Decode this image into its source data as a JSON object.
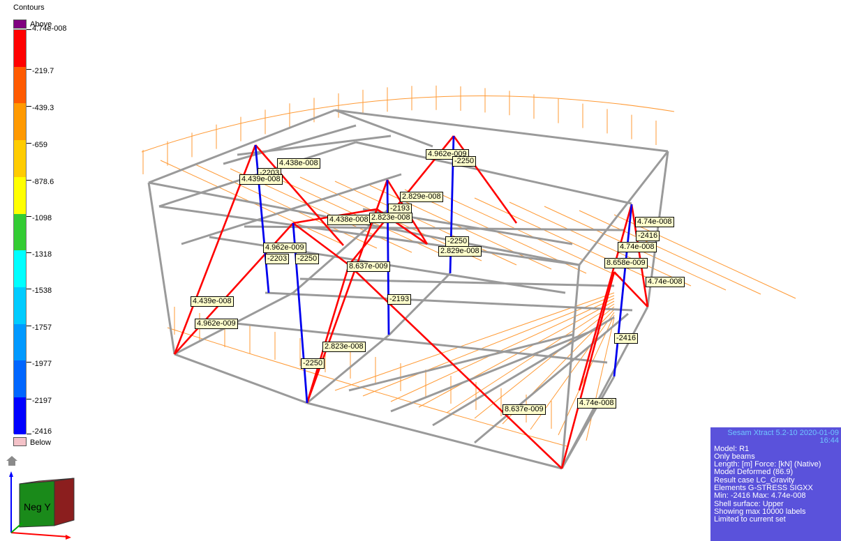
{
  "legend": {
    "title": "Contours",
    "above_label": "Above",
    "below_label": "Below",
    "ticks": [
      "4.74e-008",
      "-219.7",
      "-439.3",
      "-659",
      "-878.6",
      "-1098",
      "-1318",
      "-1538",
      "-1757",
      "-1977",
      "-2197",
      "-2416"
    ],
    "colors": [
      "#ff0000",
      "#ff5a00",
      "#ff9900",
      "#ffcc00",
      "#ffff00",
      "#33cc33",
      "#00ffff",
      "#00ccff",
      "#0099ff",
      "#0066ff",
      "#0000ff"
    ],
    "above_color": "#800080",
    "below_color": "#f4c2c8"
  },
  "labels": [
    {
      "text": "4.438e-008"
    },
    {
      "text": "-2203"
    },
    {
      "text": "4.439e-008"
    },
    {
      "text": "4.962e-009"
    },
    {
      "text": "-2250"
    },
    {
      "text": "2.829e-008"
    },
    {
      "text": "-2193"
    },
    {
      "text": "4.438e-008"
    },
    {
      "text": "2.823e-008"
    },
    {
      "text": "-2250"
    },
    {
      "text": "2.829e-008"
    },
    {
      "text": "4.962e-009"
    },
    {
      "text": "-2203"
    },
    {
      "text": "-2250"
    },
    {
      "text": "8.637e-009"
    },
    {
      "text": "4.74e-008"
    },
    {
      "text": "-2416"
    },
    {
      "text": "4.74e-008"
    },
    {
      "text": "8.658e-009"
    },
    {
      "text": "4.74e-008"
    },
    {
      "text": "-2193"
    },
    {
      "text": "4.439e-008"
    },
    {
      "text": "4.962e-009"
    },
    {
      "text": "-2416"
    },
    {
      "text": "2.823e-008"
    },
    {
      "text": "-2250"
    },
    {
      "text": "8.637e-009"
    },
    {
      "text": "4.74e-008"
    }
  ],
  "info": {
    "header": "Sesam Xtract 5.2-10  2020-01-09 16:44",
    "lines": [
      "Model: R1",
      "Only beams",
      "Length: [m]  Force: [kN] (Native)",
      "Model Deformed (86.9)",
      "Result case LC_Gravity",
      "Elements G-STRESS SIGXX",
      "Min: -2416 Max: 4.74e-008",
      "Shell surface: Upper",
      "Showing max 10000 labels",
      "Limited to current set"
    ]
  },
  "view_cube": {
    "face_label": "Neg Y"
  },
  "colors": {
    "frame": "#999999",
    "load": "#ff9933",
    "tension": "#ff0000",
    "compression": "#0000ee",
    "panel": "#5a52db"
  }
}
